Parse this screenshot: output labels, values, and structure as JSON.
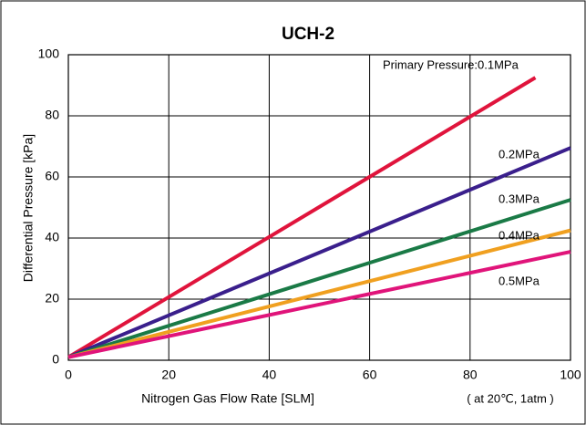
{
  "chart_data": {
    "type": "line",
    "title": "UCH-2",
    "x_label": "Nitrogen Gas Flow Rate [SLM]",
    "y_label": "Differential Pressure [kPa]",
    "note": "( at 20℃,  1atm )",
    "xlim": [
      0,
      100
    ],
    "xticks": [
      0,
      20,
      40,
      60,
      80,
      100
    ],
    "ylim": [
      0,
      100
    ],
    "yticks": [
      0,
      20,
      40,
      60,
      80,
      100
    ],
    "grid": true,
    "series": [
      {
        "name": "Primary Pressure:0.1MPa",
        "color": "#e0143c",
        "x": [
          0,
          93
        ],
        "values": [
          1,
          92.5
        ]
      },
      {
        "name": "0.2MPa",
        "color": "#3a1f8c",
        "x": [
          0,
          100
        ],
        "values": [
          1,
          69.5
        ]
      },
      {
        "name": "0.3MPa",
        "color": "#1a7a46",
        "x": [
          0,
          100
        ],
        "values": [
          1,
          52.5
        ]
      },
      {
        "name": "0.4MPa",
        "color": "#f0a020",
        "x": [
          0,
          100
        ],
        "values": [
          1,
          42.5
        ]
      },
      {
        "name": "0.5MPa",
        "color": "#e0147a",
        "x": [
          0,
          100
        ],
        "values": [
          1,
          35.5
        ]
      }
    ]
  }
}
